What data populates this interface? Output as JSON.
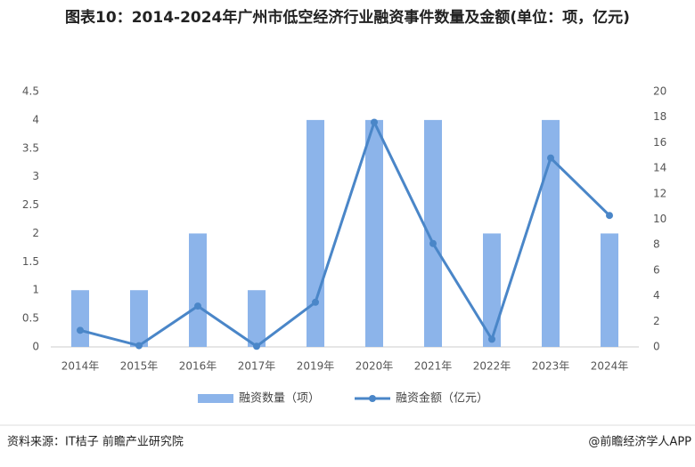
{
  "chart_data": {
    "type": "combo",
    "title": "图表10：2014-2024年广州市低空经济行业融资事件数量及金额(单位：项，亿元)",
    "categories": [
      "2014年",
      "2015年",
      "2016年",
      "2017年",
      "2019年",
      "2020年",
      "2021年",
      "2022年",
      "2023年",
      "2024年"
    ],
    "series": [
      {
        "name": "融资数量（项）",
        "type": "bar",
        "color": "#8cb4ea",
        "values": [
          1,
          1,
          2,
          1,
          4,
          4,
          4,
          2,
          4,
          2
        ]
      },
      {
        "name": "融资金额（亿元）",
        "type": "line",
        "axis": "y2",
        "color": "#4a86c8",
        "values": [
          1.3,
          0.1,
          3.2,
          0.05,
          3.5,
          17.6,
          8.1,
          0.6,
          14.8,
          10.3
        ]
      }
    ],
    "ylim": [
      0,
      4.5
    ],
    "yticks": [
      0,
      0.5,
      1,
      1.5,
      2,
      2.5,
      3,
      3.5,
      4,
      4.5
    ],
    "y2lim": [
      0,
      20
    ],
    "y2ticks": [
      0,
      2,
      4,
      6,
      8,
      10,
      12,
      14,
      16,
      18,
      20
    ],
    "grid": false,
    "source": "资料来源：IT桔子 前瞻产业研究院",
    "credit": "@前瞻经济学人APP"
  }
}
